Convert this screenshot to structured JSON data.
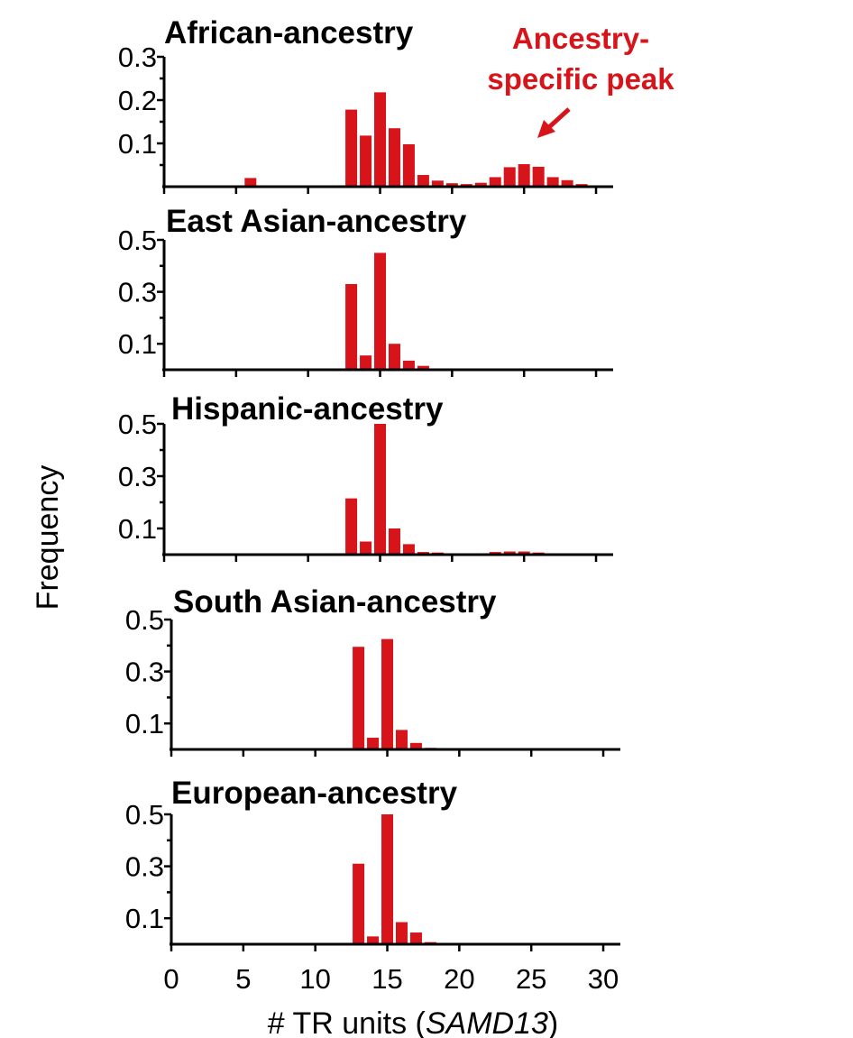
{
  "chart_data": {
    "type": "bar",
    "ylabel": "Frequency",
    "xlabel_prefix": "# TR units (",
    "xlabel_gene": "SAMD13",
    "xlabel_suffix": ")",
    "xlim": [
      0,
      31
    ],
    "xticks": [
      0,
      5,
      10,
      15,
      20,
      25,
      30
    ],
    "x": [
      1,
      2,
      3,
      4,
      5,
      6,
      7,
      8,
      9,
      10,
      11,
      12,
      13,
      14,
      15,
      16,
      17,
      18,
      19,
      20,
      21,
      22,
      23,
      24,
      25,
      26,
      27,
      28,
      29,
      30
    ],
    "bar_color": "#d7141a",
    "annotation": {
      "line1": "Ancestry-",
      "line2": "specific peak",
      "color": "#d7141a"
    },
    "panels": [
      {
        "title": "African-ancestry",
        "ylim": [
          0,
          0.3
        ],
        "yticks": [
          0.1,
          0.2,
          0.3
        ],
        "values": [
          0,
          0,
          0,
          0,
          0.003,
          0.02,
          0.003,
          0.002,
          0.003,
          0.002,
          0.002,
          0.002,
          0.178,
          0.118,
          0.218,
          0.135,
          0.098,
          0.027,
          0.014,
          0.008,
          0.006,
          0.009,
          0.022,
          0.045,
          0.052,
          0.046,
          0.022,
          0.015,
          0.006,
          0.003
        ]
      },
      {
        "title": "East Asian-ancestry",
        "ylim": [
          0,
          0.5
        ],
        "yticks": [
          0.1,
          0.3,
          0.5
        ],
        "values": [
          0,
          0,
          0,
          0,
          0,
          0,
          0,
          0,
          0,
          0,
          0,
          0,
          0.33,
          0.055,
          0.45,
          0.1,
          0.035,
          0.015,
          0.004,
          0.003,
          0.002,
          0.002,
          0.002,
          0.002,
          0.002,
          0.002,
          0.001,
          0.001,
          0.001,
          0
        ]
      },
      {
        "title": "Hispanic-ancestry",
        "ylim": [
          0,
          0.5
        ],
        "yticks": [
          0.1,
          0.3,
          0.5
        ],
        "values": [
          0,
          0,
          0,
          0,
          0.003,
          0.004,
          0.004,
          0.002,
          0.002,
          0.002,
          0.002,
          0.002,
          0.215,
          0.05,
          0.5,
          0.1,
          0.04,
          0.01,
          0.008,
          0.005,
          0.004,
          0.004,
          0.01,
          0.012,
          0.012,
          0.008,
          0.004,
          0.003,
          0.002,
          0.001
        ]
      },
      {
        "title": "South Asian-ancestry",
        "ylim": [
          0,
          0.5
        ],
        "yticks": [
          0.1,
          0.3,
          0.5
        ],
        "values": [
          0,
          0,
          0,
          0,
          0,
          0.001,
          0.001,
          0.001,
          0.001,
          0.002,
          0.002,
          0.002,
          0.395,
          0.045,
          0.425,
          0.075,
          0.025,
          0.006,
          0.004,
          0.003,
          0.002,
          0.002,
          0.002,
          0.002,
          0.002,
          0.002,
          0.002,
          0.002,
          0.001,
          0.001
        ]
      },
      {
        "title": "European-ancestry",
        "ylim": [
          0,
          0.5
        ],
        "yticks": [
          0.1,
          0.3,
          0.5
        ],
        "values": [
          0,
          0,
          0,
          0,
          0,
          0.001,
          0.001,
          0.001,
          0.001,
          0.002,
          0.002,
          0.002,
          0.31,
          0.03,
          0.5,
          0.085,
          0.045,
          0.008,
          0.004,
          0.003,
          0.002,
          0.002,
          0.002,
          0.002,
          0.002,
          0.002,
          0.002,
          0.002,
          0.001,
          0.001
        ]
      }
    ]
  }
}
